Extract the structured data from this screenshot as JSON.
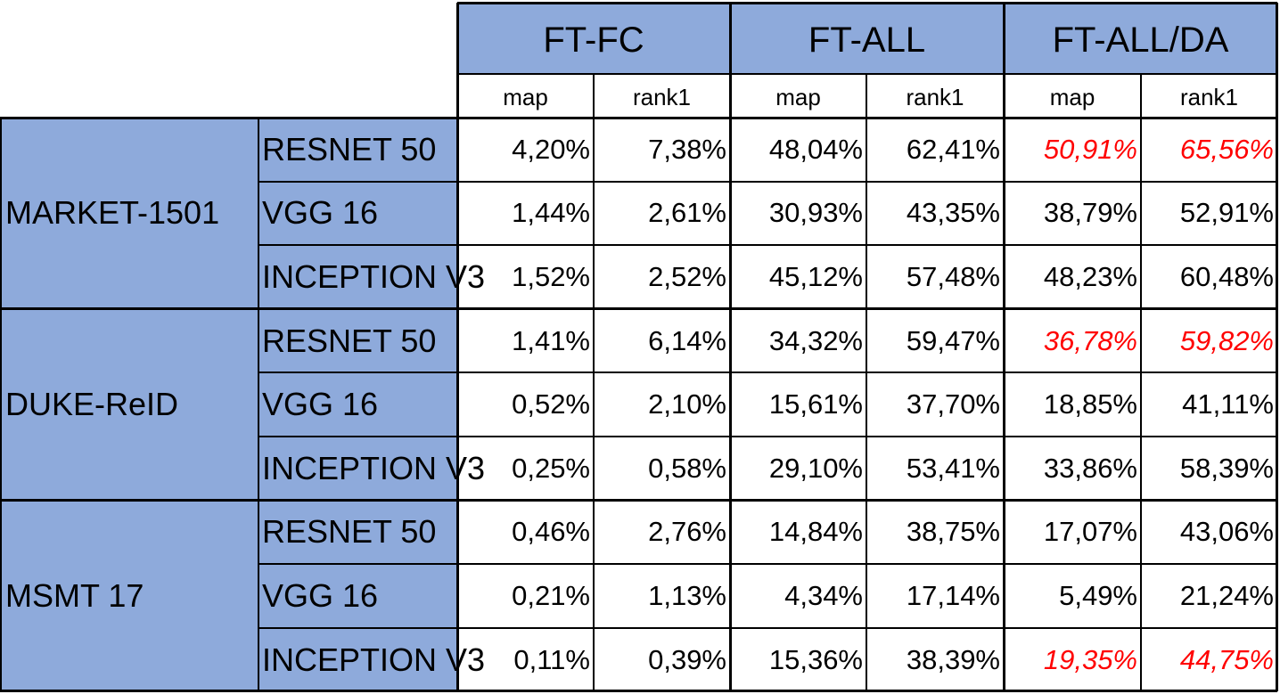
{
  "groups": [
    "FT-FC",
    "FT-ALL",
    "FT-ALL/DA"
  ],
  "subheaders": [
    "map",
    "rank1",
    "map",
    "rank1",
    "map",
    "rank1"
  ],
  "colors": {
    "header_fill": "#8eaadb",
    "highlight_text": "#ff0000",
    "border": "#000000"
  },
  "datasets": [
    {
      "name": "MARKET-1501",
      "rows": [
        {
          "model": "RESNET 50",
          "values": [
            "4,20%",
            "7,38%",
            "48,04%",
            "62,41%",
            "50,91%",
            "65,56%"
          ],
          "highlight": [
            false,
            false,
            false,
            false,
            true,
            true
          ]
        },
        {
          "model": "VGG 16",
          "values": [
            "1,44%",
            "2,61%",
            "30,93%",
            "43,35%",
            "38,79%",
            "52,91%"
          ],
          "highlight": [
            false,
            false,
            false,
            false,
            false,
            false
          ]
        },
        {
          "model": "INCEPTION V3",
          "values": [
            "1,52%",
            "2,52%",
            "45,12%",
            "57,48%",
            "48,23%",
            "60,48%"
          ],
          "highlight": [
            false,
            false,
            false,
            false,
            false,
            false
          ]
        }
      ]
    },
    {
      "name": "DUKE-ReID",
      "rows": [
        {
          "model": "RESNET 50",
          "values": [
            "1,41%",
            "6,14%",
            "34,32%",
            "59,47%",
            "36,78%",
            "59,82%"
          ],
          "highlight": [
            false,
            false,
            false,
            false,
            true,
            true
          ]
        },
        {
          "model": "VGG 16",
          "values": [
            "0,52%",
            "2,10%",
            "15,61%",
            "37,70%",
            "18,85%",
            "41,11%"
          ],
          "highlight": [
            false,
            false,
            false,
            false,
            false,
            false
          ]
        },
        {
          "model": "INCEPTION V3",
          "values": [
            "0,25%",
            "0,58%",
            "29,10%",
            "53,41%",
            "33,86%",
            "58,39%"
          ],
          "highlight": [
            false,
            false,
            false,
            false,
            false,
            false
          ]
        }
      ]
    },
    {
      "name": "MSMT 17",
      "rows": [
        {
          "model": "RESNET 50",
          "values": [
            "0,46%",
            "2,76%",
            "14,84%",
            "38,75%",
            "17,07%",
            "43,06%"
          ],
          "highlight": [
            false,
            false,
            false,
            false,
            false,
            false
          ]
        },
        {
          "model": "VGG 16",
          "values": [
            "0,21%",
            "1,13%",
            "4,34%",
            "17,14%",
            "5,49%",
            "21,24%"
          ],
          "highlight": [
            false,
            false,
            false,
            false,
            false,
            false
          ]
        },
        {
          "model": "INCEPTION V3",
          "values": [
            "0,11%",
            "0,39%",
            "15,36%",
            "38,39%",
            "19,35%",
            "44,75%"
          ],
          "highlight": [
            false,
            false,
            false,
            false,
            true,
            true
          ]
        }
      ]
    }
  ]
}
